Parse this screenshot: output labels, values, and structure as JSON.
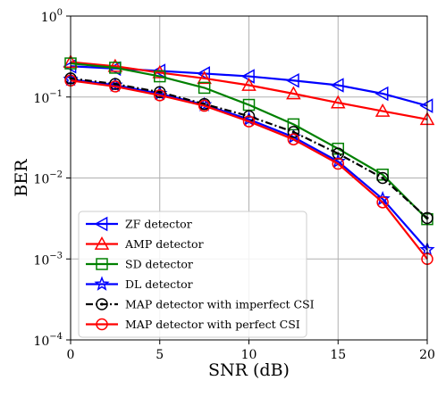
{
  "chart_data": {
    "type": "line",
    "xlabel": "SNR (dB)",
    "ylabel": "BER",
    "xlim": [
      0,
      20
    ],
    "ylim": [
      0.0001,
      1
    ],
    "yscale": "log",
    "grid": true,
    "legend_position": "bottom-left",
    "x_ticks": [
      {
        "value": 0,
        "label": "0"
      },
      {
        "value": 5,
        "label": "5"
      },
      {
        "value": 10,
        "label": "10"
      },
      {
        "value": 15,
        "label": "15"
      },
      {
        "value": 20,
        "label": "20"
      }
    ],
    "y_ticks": [
      {
        "value": 1,
        "base": "10",
        "exp": "0"
      },
      {
        "value": 0.1,
        "base": "10",
        "exp": "−1"
      },
      {
        "value": 0.01,
        "base": "10",
        "exp": "−2"
      },
      {
        "value": 0.001,
        "base": "10",
        "exp": "−3"
      },
      {
        "value": 0.0001,
        "base": "10",
        "exp": "−4"
      }
    ],
    "series": [
      {
        "name": "ZF detector",
        "color": "#0000ff",
        "marker": "triangle-left",
        "dash": "solid",
        "x": [
          0,
          2.5,
          5,
          7.5,
          10,
          12.5,
          15,
          17.5,
          20
        ],
        "y": [
          0.24,
          0.225,
          0.21,
          0.195,
          0.18,
          0.16,
          0.14,
          0.11,
          0.078
        ]
      },
      {
        "name": "AMP detector",
        "color": "#ff0000",
        "marker": "triangle-up",
        "dash": "solid",
        "x": [
          0,
          2.5,
          5,
          7.5,
          10,
          12.5,
          15,
          17.5,
          20
        ],
        "y": [
          0.27,
          0.24,
          0.2,
          0.17,
          0.14,
          0.11,
          0.085,
          0.067,
          0.053
        ]
      },
      {
        "name": "SD detector",
        "color": "#008000",
        "marker": "square",
        "dash": "solid",
        "x": [
          0,
          2.5,
          5,
          7.5,
          10,
          12.5,
          15,
          17.5,
          20
        ],
        "y": [
          0.26,
          0.23,
          0.18,
          0.13,
          0.08,
          0.046,
          0.023,
          0.011,
          0.0031
        ]
      },
      {
        "name": "DL detector",
        "color": "#0000ff",
        "marker": "star",
        "dash": "solid",
        "x": [
          0,
          2.5,
          5,
          7.5,
          10,
          12.5,
          15,
          17.5,
          20
        ],
        "y": [
          0.165,
          0.14,
          0.11,
          0.08,
          0.053,
          0.032,
          0.016,
          0.0055,
          0.0013
        ]
      },
      {
        "name": "MAP detector with imperfect CSI",
        "color": "#000000",
        "marker": "circle-dot",
        "dash": "dashdot",
        "x": [
          0,
          2.5,
          5,
          7.5,
          10,
          12.5,
          15,
          17.5,
          20
        ],
        "y": [
          0.17,
          0.145,
          0.115,
          0.082,
          0.058,
          0.037,
          0.02,
          0.01,
          0.0032
        ]
      },
      {
        "name": "MAP detector with perfect CSI",
        "color": "#ff0000",
        "marker": "circle",
        "dash": "solid",
        "x": [
          0,
          2.5,
          5,
          7.5,
          10,
          12.5,
          15,
          17.5,
          20
        ],
        "y": [
          0.16,
          0.135,
          0.105,
          0.078,
          0.05,
          0.03,
          0.015,
          0.005,
          0.001
        ]
      }
    ]
  }
}
